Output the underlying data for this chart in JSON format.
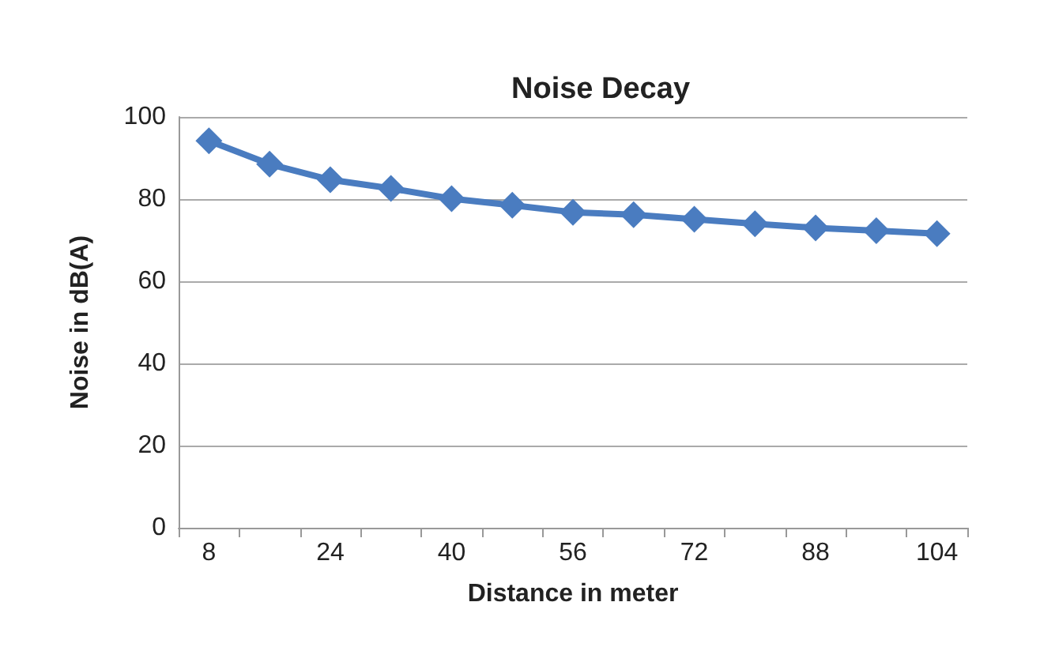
{
  "chart_data": {
    "type": "line",
    "title": "Noise Decay",
    "xlabel": "Distance in meter",
    "ylabel": "Noise in dB(A)",
    "categories": [
      "8",
      null,
      "24",
      null,
      "40",
      null,
      "56",
      null,
      "72",
      null,
      "88",
      null,
      "104"
    ],
    "series": [
      {
        "color": "#4a7cc0",
        "values": [
          94.2,
          88.5,
          84.7,
          82.6,
          80.1,
          78.5,
          76.8,
          76.2,
          75.1,
          74,
          73,
          72.3,
          71.6
        ]
      }
    ],
    "ylim": [
      0,
      100
    ],
    "yticks": [
      0,
      20,
      40,
      60,
      80,
      100
    ],
    "grid": "y",
    "marker": "diamond",
    "line_style": "solid"
  }
}
